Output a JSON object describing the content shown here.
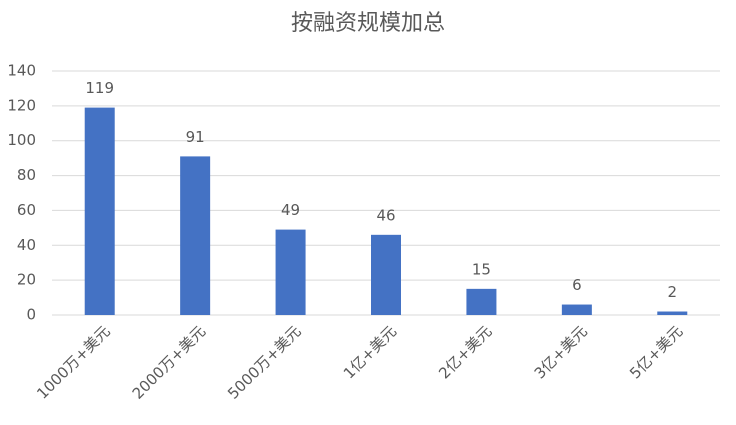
{
  "chart_data": {
    "type": "bar",
    "title": "按融资规模加总",
    "categories": [
      "1000万+美元",
      "2000万+美元",
      "5000万+美元",
      "1亿+美元",
      "2亿+美元",
      "3亿+美元",
      "5亿+美元"
    ],
    "values": [
      119,
      91,
      49,
      46,
      15,
      6,
      2
    ],
    "color": "#4472c4",
    "ylim": [
      0,
      140
    ],
    "yticks": [
      0,
      20,
      40,
      60,
      80,
      100,
      120,
      140
    ],
    "grid": true
  }
}
